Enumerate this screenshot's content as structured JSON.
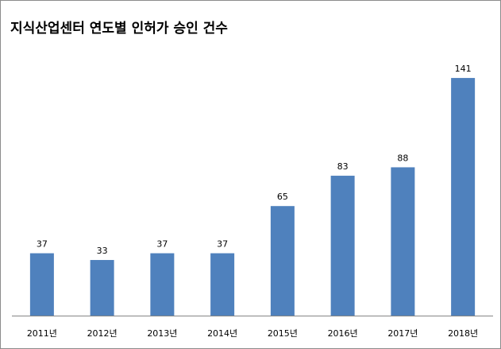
{
  "chart_data": {
    "type": "bar",
    "title": "지식산업센터 연도별 인허가 승인 건수",
    "categories": [
      "2011년",
      "2012년",
      "2013년",
      "2014년",
      "2015년",
      "2016년",
      "2017년",
      "2018년"
    ],
    "values": [
      37,
      33,
      37,
      37,
      65,
      83,
      88,
      141
    ],
    "data_labels": [
      "37",
      "33",
      "37",
      "37",
      "65",
      "83",
      "88",
      "141"
    ],
    "xlabel": "",
    "ylabel": "",
    "ylim": [
      0,
      160
    ],
    "grid": false,
    "legend": "none",
    "bar_color": "#4f81bd",
    "axis_color": "#868686"
  }
}
